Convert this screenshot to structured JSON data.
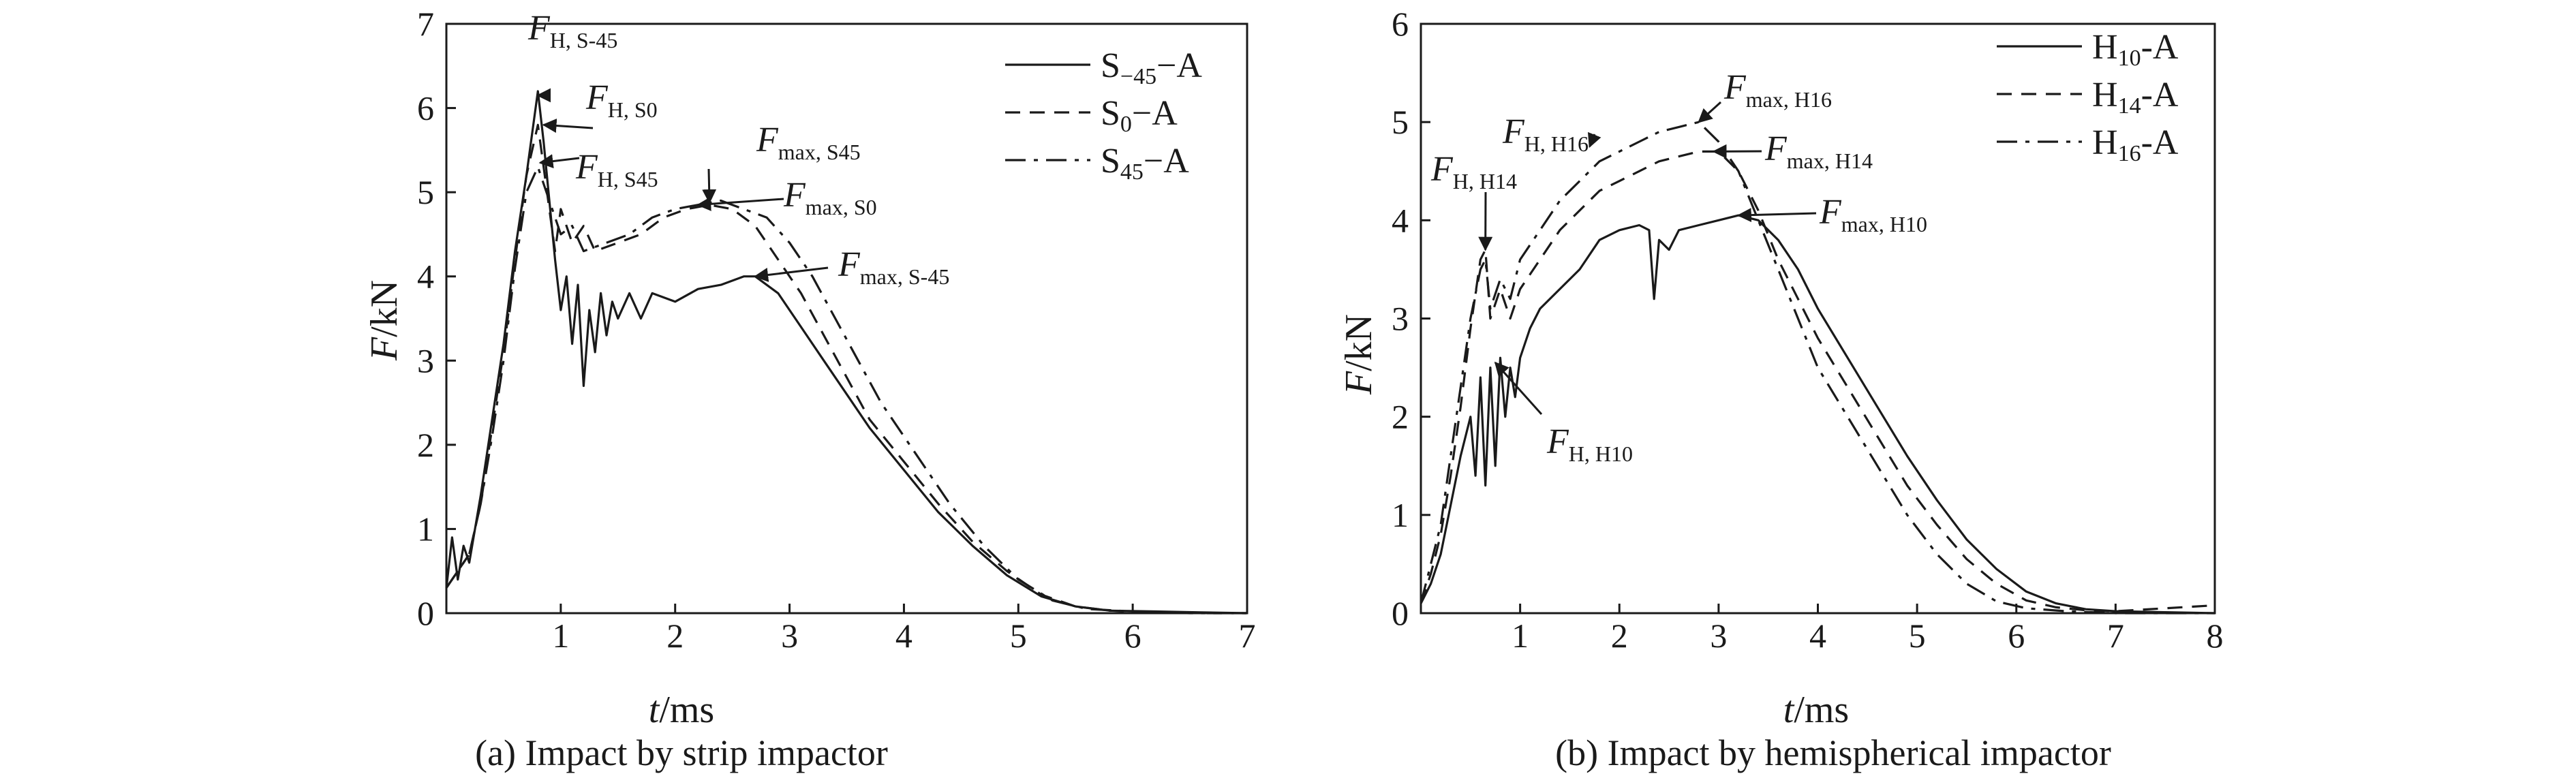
{
  "chart_data": [
    {
      "type": "line",
      "caption": "(a) Impact by strip impactor",
      "xlabel_var": "t",
      "xlabel_unit": "/ms",
      "ylabel_var": "F",
      "ylabel_unit": "/kN",
      "xlim": [
        0,
        7
      ],
      "ylim": [
        0,
        7
      ],
      "xticks": [
        "1",
        "2",
        "3",
        "4",
        "5",
        "6",
        "7"
      ],
      "yticks": [
        "0",
        "1",
        "2",
        "3",
        "4",
        "5",
        "6",
        "7"
      ],
      "legend_position": "top-right",
      "grid": false,
      "series": [
        {
          "name": "S−45−A",
          "name_main": "S",
          "name_sub": "−45",
          "name_tail": "−A",
          "style": "solid",
          "x": [
            0,
            0.05,
            0.1,
            0.15,
            0.2,
            0.3,
            0.4,
            0.5,
            0.6,
            0.7,
            0.8,
            0.85,
            0.9,
            0.95,
            1.0,
            1.05,
            1.1,
            1.15,
            1.2,
            1.25,
            1.3,
            1.35,
            1.4,
            1.45,
            1.5,
            1.6,
            1.7,
            1.8,
            2.0,
            2.2,
            2.4,
            2.6,
            2.7,
            2.9,
            3.1,
            3.3,
            3.5,
            3.7,
            4.0,
            4.3,
            4.6,
            4.9,
            5.2,
            5.5,
            5.8,
            6.2,
            6.6,
            7.0
          ],
          "y": [
            0.3,
            0.9,
            0.4,
            0.8,
            0.6,
            1.4,
            2.3,
            3.2,
            4.3,
            5.2,
            6.2,
            5.6,
            4.9,
            4.2,
            3.6,
            4.0,
            3.2,
            3.9,
            2.7,
            3.6,
            3.1,
            3.8,
            3.3,
            3.7,
            3.5,
            3.8,
            3.5,
            3.8,
            3.7,
            3.85,
            3.9,
            4.0,
            4.0,
            3.8,
            3.4,
            3.0,
            2.6,
            2.2,
            1.7,
            1.2,
            0.8,
            0.45,
            0.2,
            0.08,
            0.03,
            0.02,
            0.01,
            0.0
          ]
        },
        {
          "name": "S0−A",
          "name_main": "S",
          "name_sub": "0",
          "name_tail": "−A",
          "style": "dashed",
          "x": [
            0,
            0.1,
            0.2,
            0.3,
            0.4,
            0.5,
            0.6,
            0.7,
            0.8,
            0.85,
            0.9,
            0.95,
            1.0,
            1.1,
            1.2,
            1.3,
            1.5,
            1.7,
            1.9,
            2.1,
            2.3,
            2.5,
            2.7,
            2.9,
            3.1,
            3.3,
            3.5,
            3.7,
            4.0,
            4.3,
            4.6,
            4.9,
            5.2,
            5.5,
            5.8,
            6.2,
            6.6,
            7.0
          ],
          "y": [
            0.3,
            0.5,
            0.7,
            1.3,
            2.2,
            3.1,
            4.2,
            5.2,
            5.8,
            5.3,
            4.8,
            4.3,
            4.8,
            4.4,
            4.6,
            4.3,
            4.4,
            4.5,
            4.7,
            4.8,
            4.85,
            4.8,
            4.6,
            4.2,
            3.8,
            3.3,
            2.8,
            2.3,
            1.8,
            1.3,
            0.85,
            0.5,
            0.22,
            0.08,
            0.03,
            0.01,
            0.0,
            0.0
          ]
        },
        {
          "name": "S45−A",
          "name_main": "S",
          "name_sub": "45",
          "name_tail": "−A",
          "style": "dashdot",
          "x": [
            0,
            0.1,
            0.2,
            0.3,
            0.4,
            0.5,
            0.6,
            0.7,
            0.8,
            0.9,
            1.0,
            1.1,
            1.2,
            1.4,
            1.6,
            1.8,
            2.0,
            2.2,
            2.4,
            2.6,
            2.8,
            3.0,
            3.2,
            3.4,
            3.6,
            3.8,
            4.1,
            4.4,
            4.7,
            5.0,
            5.3,
            5.6,
            6.0,
            6.5,
            7.0
          ],
          "y": [
            0.3,
            0.5,
            0.7,
            1.3,
            2.1,
            3.0,
            4.1,
            5.0,
            5.3,
            4.9,
            4.5,
            4.6,
            4.3,
            4.4,
            4.5,
            4.7,
            4.8,
            4.85,
            4.9,
            4.8,
            4.7,
            4.4,
            4.0,
            3.5,
            3.0,
            2.5,
            1.9,
            1.3,
            0.8,
            0.4,
            0.15,
            0.05,
            0.02,
            0.0,
            0.0
          ]
        }
      ],
      "annotations": [
        {
          "main": "F",
          "sub": "H, S-45"
        },
        {
          "main": "F",
          "sub": "H, S0"
        },
        {
          "main": "F",
          "sub": "H, S45"
        },
        {
          "main": "F",
          "sub": "max, S45"
        },
        {
          "main": "F",
          "sub": "max, S0"
        },
        {
          "main": "F",
          "sub": "max, S-45"
        }
      ]
    },
    {
      "type": "line",
      "caption": "(b) Impact by hemispherical impactor",
      "xlabel_var": "t",
      "xlabel_unit": "/ms",
      "ylabel_var": "F",
      "ylabel_unit": "/kN",
      "xlim": [
        0,
        8
      ],
      "ylim": [
        0,
        6
      ],
      "xticks": [
        "1",
        "2",
        "3",
        "4",
        "5",
        "6",
        "7",
        "8"
      ],
      "yticks": [
        "0",
        "1",
        "2",
        "3",
        "4",
        "5",
        "6"
      ],
      "legend_position": "top-right",
      "grid": false,
      "series": [
        {
          "name": "H10-A",
          "name_main": "H",
          "name_sub": "10",
          "name_tail": "-A",
          "style": "solid",
          "x": [
            0,
            0.1,
            0.2,
            0.3,
            0.4,
            0.5,
            0.55,
            0.6,
            0.65,
            0.7,
            0.75,
            0.8,
            0.85,
            0.9,
            0.95,
            1.0,
            1.1,
            1.2,
            1.4,
            1.6,
            1.8,
            2.0,
            2.2,
            2.3,
            2.35,
            2.4,
            2.5,
            2.6,
            2.8,
            3.0,
            3.2,
            3.4,
            3.6,
            3.8,
            4.0,
            4.3,
            4.6,
            4.9,
            5.2,
            5.5,
            5.8,
            6.1,
            6.4,
            6.7,
            7.0,
            7.5,
            8.0
          ],
          "y": [
            0.1,
            0.3,
            0.6,
            1.1,
            1.6,
            2.0,
            1.4,
            2.4,
            1.3,
            2.5,
            1.5,
            2.6,
            2.0,
            2.5,
            2.2,
            2.6,
            2.9,
            3.1,
            3.3,
            3.5,
            3.8,
            3.9,
            3.95,
            3.9,
            3.2,
            3.8,
            3.7,
            3.9,
            3.95,
            4.0,
            4.05,
            4.0,
            3.8,
            3.5,
            3.1,
            2.6,
            2.1,
            1.6,
            1.15,
            0.75,
            0.45,
            0.22,
            0.1,
            0.04,
            0.02,
            0.01,
            0.0
          ]
        },
        {
          "name": "H14-A",
          "name_main": "H",
          "name_sub": "14",
          "name_tail": "-A",
          "style": "dashed",
          "x": [
            0,
            0.1,
            0.2,
            0.3,
            0.4,
            0.5,
            0.6,
            0.65,
            0.7,
            0.8,
            0.9,
            1.0,
            1.2,
            1.4,
            1.6,
            1.8,
            2.0,
            2.2,
            2.4,
            2.6,
            2.8,
            3.0,
            3.2,
            3.4,
            3.6,
            3.8,
            4.0,
            4.3,
            4.6,
            4.9,
            5.2,
            5.5,
            5.8,
            6.1,
            6.4,
            6.7,
            7.0,
            7.5,
            8.0
          ],
          "y": [
            0.1,
            0.4,
            0.8,
            1.4,
            2.1,
            2.9,
            3.6,
            3.7,
            3.0,
            3.3,
            3.0,
            3.3,
            3.6,
            3.9,
            4.1,
            4.3,
            4.4,
            4.5,
            4.6,
            4.65,
            4.7,
            4.7,
            4.5,
            4.1,
            3.6,
            3.2,
            2.8,
            2.3,
            1.8,
            1.3,
            0.9,
            0.55,
            0.3,
            0.13,
            0.06,
            0.03,
            0.02,
            0.05,
            0.08
          ]
        },
        {
          "name": "H16-A",
          "name_main": "H",
          "name_sub": "16",
          "name_tail": "-A",
          "style": "dashdot",
          "x": [
            0,
            0.1,
            0.2,
            0.3,
            0.4,
            0.5,
            0.6,
            0.65,
            0.7,
            0.8,
            0.9,
            1.0,
            1.2,
            1.4,
            1.6,
            1.8,
            2.0,
            2.2,
            2.4,
            2.6,
            2.8,
            3.0,
            3.2,
            3.4,
            3.6,
            3.8,
            4.0,
            4.3,
            4.6,
            4.9,
            5.2,
            5.5,
            5.8,
            6.1,
            6.5,
            7.0,
            7.5,
            8.0
          ],
          "y": [
            0.1,
            0.5,
            0.9,
            1.6,
            2.3,
            3.0,
            3.5,
            3.6,
            3.1,
            3.4,
            3.2,
            3.6,
            3.9,
            4.2,
            4.4,
            4.6,
            4.7,
            4.8,
            4.9,
            4.95,
            5.0,
            4.8,
            4.5,
            4.0,
            3.5,
            3.0,
            2.5,
            2.0,
            1.5,
            1.0,
            0.6,
            0.3,
            0.12,
            0.05,
            0.02,
            0.0,
            0.0,
            0.0
          ]
        }
      ],
      "annotations": [
        {
          "main": "F",
          "sub": "max, H16"
        },
        {
          "main": "F",
          "sub": "H, H16"
        },
        {
          "main": "F",
          "sub": "max, H14"
        },
        {
          "main": "F",
          "sub": "H, H14"
        },
        {
          "main": "F",
          "sub": "max, H10"
        },
        {
          "main": "F",
          "sub": "H, H10"
        }
      ]
    }
  ]
}
